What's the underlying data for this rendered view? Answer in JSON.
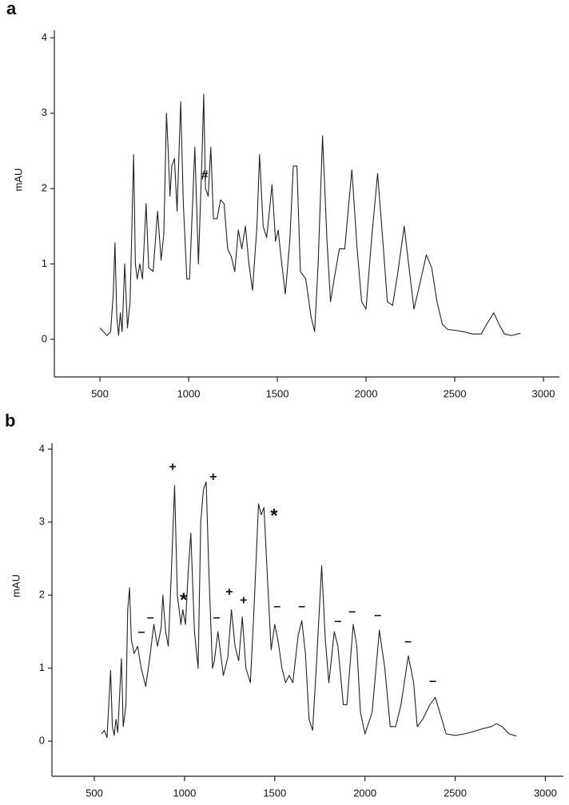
{
  "chart_data": [
    {
      "type": "line",
      "label": "a",
      "ylabel": "mAU",
      "color": "#222222",
      "xlim": [
        243,
        3090
      ],
      "ylim": [
        -0.5,
        4.1
      ],
      "xticks": [
        500,
        1000,
        1500,
        2000,
        2500,
        3000
      ],
      "yticks": [
        0,
        1,
        2,
        3,
        4
      ],
      "x": [
        500,
        520,
        540,
        560,
        575,
        585,
        595,
        605,
        615,
        625,
        640,
        655,
        670,
        690,
        700,
        710,
        725,
        740,
        760,
        775,
        800,
        825,
        845,
        860,
        875,
        885,
        895,
        905,
        920,
        935,
        955,
        970,
        990,
        1005,
        1035,
        1055,
        1075,
        1085,
        1095,
        1110,
        1125,
        1140,
        1160,
        1180,
        1200,
        1220,
        1240,
        1260,
        1280,
        1300,
        1320,
        1340,
        1360,
        1385,
        1400,
        1420,
        1440,
        1470,
        1490,
        1505,
        1520,
        1545,
        1570,
        1590,
        1610,
        1630,
        1660,
        1690,
        1710,
        1730,
        1755,
        1780,
        1800,
        1820,
        1850,
        1880,
        1920,
        1950,
        1975,
        2000,
        2030,
        2065,
        2095,
        2120,
        2150,
        2180,
        2215,
        2245,
        2270,
        2300,
        2340,
        2370,
        2400,
        2430,
        2460,
        2500,
        2550,
        2600,
        2650,
        2680,
        2720,
        2750,
        2780,
        2820,
        2870
      ],
      "values": [
        0.15,
        0.1,
        0.05,
        0.1,
        0.6,
        1.28,
        0.3,
        0.05,
        0.35,
        0.1,
        1.0,
        0.15,
        0.5,
        2.45,
        1.0,
        0.8,
        1.0,
        0.8,
        1.8,
        0.95,
        0.9,
        1.7,
        1.05,
        1.4,
        3.0,
        2.5,
        1.9,
        2.3,
        2.4,
        1.7,
        3.15,
        1.8,
        0.8,
        0.8,
        2.55,
        1.0,
        2.4,
        3.25,
        2.0,
        1.9,
        2.55,
        1.6,
        1.6,
        1.85,
        1.8,
        1.2,
        1.1,
        0.9,
        1.45,
        1.2,
        1.5,
        1.0,
        0.65,
        1.5,
        2.45,
        1.5,
        1.35,
        2.05,
        1.3,
        1.45,
        1.1,
        0.6,
        1.3,
        2.3,
        2.3,
        0.9,
        0.8,
        0.3,
        0.1,
        1.0,
        2.7,
        1.3,
        0.5,
        0.8,
        1.2,
        1.2,
        2.25,
        1.2,
        0.5,
        0.4,
        1.3,
        2.2,
        1.3,
        0.5,
        0.45,
        0.9,
        1.5,
        0.9,
        0.4,
        0.7,
        1.12,
        0.95,
        0.5,
        0.2,
        0.13,
        0.12,
        0.1,
        0.07,
        0.07,
        0.2,
        0.35,
        0.2,
        0.07,
        0.05,
        0.08
      ],
      "annotations": [
        {
          "text": "#",
          "x": 1090,
          "y": 2.17
        }
      ]
    },
    {
      "type": "line",
      "label": "b",
      "ylabel": "mAU",
      "color": "#222222",
      "xlim": [
        265,
        3100
      ],
      "ylim": [
        -0.48,
        4.08
      ],
      "xticks": [
        500,
        1000,
        1500,
        2000,
        2500,
        3000
      ],
      "yticks": [
        0,
        1,
        2,
        3,
        4
      ],
      "x": [
        540,
        555,
        570,
        580,
        590,
        600,
        610,
        620,
        630,
        650,
        660,
        675,
        685,
        695,
        705,
        720,
        740,
        760,
        785,
        805,
        830,
        850,
        870,
        880,
        895,
        910,
        925,
        945,
        960,
        980,
        990,
        1005,
        1020,
        1035,
        1055,
        1075,
        1090,
        1105,
        1120,
        1135,
        1155,
        1165,
        1185,
        1200,
        1215,
        1240,
        1260,
        1280,
        1300,
        1320,
        1340,
        1365,
        1385,
        1410,
        1425,
        1440,
        1460,
        1480,
        1500,
        1520,
        1540,
        1560,
        1580,
        1600,
        1630,
        1650,
        1670,
        1690,
        1710,
        1730,
        1760,
        1780,
        1800,
        1830,
        1850,
        1880,
        1900,
        1935,
        1955,
        1975,
        2000,
        2040,
        2080,
        2110,
        2140,
        2170,
        2200,
        2240,
        2270,
        2290,
        2320,
        2360,
        2390,
        2420,
        2450,
        2500,
        2550,
        2600,
        2650,
        2700,
        2730,
        2760,
        2800,
        2840
      ],
      "values": [
        0.1,
        0.15,
        0.05,
        0.5,
        0.97,
        0.2,
        0.08,
        0.3,
        0.12,
        1.13,
        0.2,
        0.5,
        1.8,
        2.1,
        1.4,
        1.2,
        1.3,
        1.0,
        0.75,
        1.1,
        1.6,
        1.3,
        1.55,
        2.0,
        1.5,
        1.3,
        2.2,
        3.5,
        2.0,
        1.6,
        1.8,
        1.6,
        2.3,
        2.85,
        1.5,
        1.0,
        3.0,
        3.45,
        3.55,
        2.3,
        1.0,
        1.1,
        1.5,
        1.2,
        0.9,
        1.15,
        1.8,
        1.3,
        1.1,
        1.7,
        1.0,
        0.8,
        1.8,
        3.25,
        3.1,
        3.2,
        2.2,
        1.25,
        1.6,
        1.35,
        1.0,
        0.8,
        0.9,
        0.8,
        1.45,
        1.65,
        1.2,
        0.3,
        0.15,
        1.0,
        2.4,
        1.4,
        0.8,
        1.5,
        1.3,
        0.5,
        0.5,
        1.6,
        1.3,
        0.4,
        0.1,
        0.4,
        1.52,
        1.0,
        0.2,
        0.2,
        0.5,
        1.17,
        0.8,
        0.2,
        0.3,
        0.5,
        0.6,
        0.35,
        0.1,
        0.08,
        0.1,
        0.13,
        0.17,
        0.2,
        0.24,
        0.2,
        0.1,
        0.07
      ],
      "annotations": [
        {
          "text": "+",
          "x": 934,
          "y": 3.75
        },
        {
          "text": "+",
          "x": 1159,
          "y": 3.61
        },
        {
          "text": "*",
          "x": 1496,
          "y": 3.07
        },
        {
          "text": "*",
          "x": 995,
          "y": 1.92
        },
        {
          "text": "+",
          "x": 1248,
          "y": 2.04
        },
        {
          "text": "+",
          "x": 1327,
          "y": 1.92
        },
        {
          "text": "–",
          "x": 761,
          "y": 1.49
        },
        {
          "text": "–",
          "x": 810,
          "y": 1.69
        },
        {
          "text": "–",
          "x": 1177,
          "y": 1.69
        },
        {
          "text": "–",
          "x": 1513,
          "y": 1.84
        },
        {
          "text": "–",
          "x": 1650,
          "y": 1.84
        },
        {
          "text": "–",
          "x": 1850,
          "y": 1.64
        },
        {
          "text": "–",
          "x": 1929,
          "y": 1.77
        },
        {
          "text": "–",
          "x": 2071,
          "y": 1.72
        },
        {
          "text": "–",
          "x": 2239,
          "y": 1.36
        },
        {
          "text": "–",
          "x": 2376,
          "y": 0.82
        }
      ]
    }
  ]
}
